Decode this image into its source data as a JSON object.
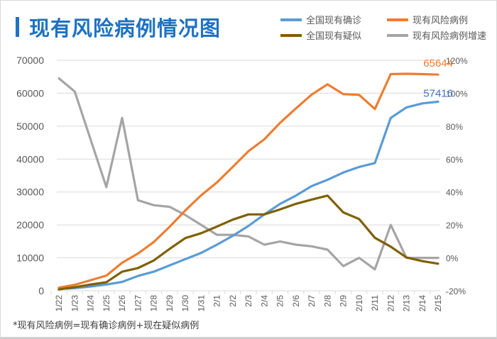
{
  "header": {
    "title": "现有风险病例情况图"
  },
  "footnote": "*现有风险病例=现有确诊病例+现在疑似病例",
  "legend": [
    {
      "label": "全国现有确诊",
      "color": "#5b9bd5"
    },
    {
      "label": "现有风险病例",
      "color": "#ed7d31"
    },
    {
      "label": "全国现有疑似",
      "color": "#7f6000"
    },
    {
      "label": "现有风险病例增速",
      "color": "#a5a5a5"
    }
  ],
  "chart_data": {
    "type": "line",
    "title": "现有风险病例情况图",
    "x": [
      "1/22",
      "1/23",
      "1/24",
      "1/25",
      "1/26",
      "1/27",
      "1/28",
      "1/29",
      "1/30",
      "1/31",
      "2/1",
      "2/2",
      "2/3",
      "2/4",
      "2/5",
      "2/6",
      "2/7",
      "2/8",
      "2/9",
      "2/10",
      "2/11",
      "2/12",
      "2/13",
      "2/14",
      "2/15"
    ],
    "y_left": {
      "min": 0,
      "max": 70000,
      "ticks": [
        0,
        10000,
        20000,
        30000,
        40000,
        50000,
        60000,
        70000
      ],
      "tick_labels": [
        "0",
        "10000",
        "20000",
        "30000",
        "40000",
        "50000",
        "60000",
        "70000"
      ]
    },
    "y_right": {
      "min": -0.2,
      "max": 1.2,
      "ticks": [
        -0.2,
        0,
        0.2,
        0.4,
        0.6,
        0.8,
        1.0,
        1.2
      ],
      "tick_labels": [
        "-20%",
        "0%",
        "20%",
        "40%",
        "60%",
        "80%",
        "100%",
        "120%"
      ]
    },
    "grid": true,
    "legend_position": "top-right",
    "series": [
      {
        "name": "全国现有确诊",
        "axis": "left",
        "color": "#5b9bd5",
        "values": [
          550,
          800,
          1300,
          1900,
          2700,
          4500,
          5800,
          7700,
          9600,
          11500,
          14000,
          16700,
          19700,
          23200,
          26400,
          28900,
          31800,
          33700,
          35900,
          37600,
          38800,
          52500,
          55700,
          56900,
          57416
        ]
      },
      {
        "name": "现有风险病例",
        "axis": "left",
        "color": "#ed7d31",
        "values": [
          950,
          1800,
          3200,
          4600,
          8500,
          11300,
          14800,
          19400,
          24400,
          29000,
          32900,
          37600,
          42400,
          46000,
          51000,
          55400,
          59600,
          62700,
          59700,
          59500,
          55200,
          65800,
          65900,
          65800,
          65644
        ]
      },
      {
        "name": "全国现有疑似",
        "axis": "left",
        "color": "#7f6000",
        "values": [
          400,
          1100,
          1900,
          2600,
          5800,
          6900,
          9200,
          12700,
          16000,
          17500,
          19500,
          21600,
          23200,
          23200,
          24700,
          26400,
          27700,
          28900,
          23800,
          21800,
          16100,
          13400,
          10100,
          9000,
          8228
        ]
      },
      {
        "name": "现有风险病例增速",
        "axis": "right",
        "color": "#a5a5a5",
        "values": [
          1.09,
          1.01,
          0.72,
          0.43,
          0.85,
          0.35,
          0.32,
          0.31,
          0.26,
          0.2,
          0.14,
          0.14,
          0.13,
          0.08,
          0.1,
          0.08,
          0.07,
          0.05,
          -0.05,
          0.0,
          -0.07,
          0.2,
          0.0,
          0.0,
          0.0
        ]
      }
    ],
    "end_labels": [
      {
        "series": "现有风险病例",
        "text": "65644",
        "color": "#ed7d31"
      },
      {
        "series": "全国现有确诊",
        "text": "57416",
        "color": "#4472c4"
      }
    ]
  }
}
